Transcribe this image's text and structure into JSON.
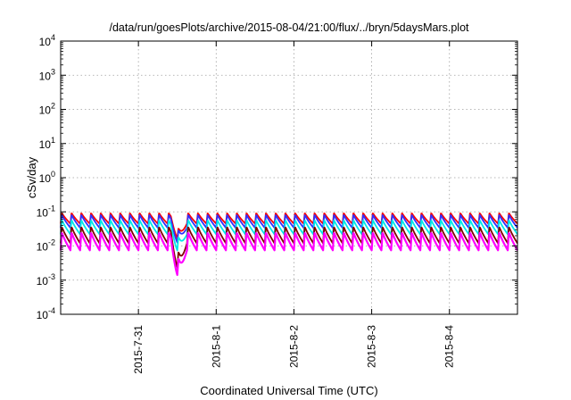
{
  "chart_data": {
    "type": "line",
    "title": "/data/run/goesPlots/archive/2015-08-04/21:00/flux/../bryn/5daysMars.plot",
    "xlabel": "Coordinated Universal Time (UTC)",
    "ylabel": "cSv/day",
    "yscale": "log",
    "ylim": [
      0.0001,
      10000
    ],
    "y_ticks": [
      {
        "value": 0.0001,
        "base": "10",
        "exp": "-4"
      },
      {
        "value": 0.001,
        "base": "10",
        "exp": "-3"
      },
      {
        "value": 0.01,
        "base": "10",
        "exp": "-2"
      },
      {
        "value": 0.1,
        "base": "10",
        "exp": "-1"
      },
      {
        "value": 1,
        "base": "10",
        "exp": "0"
      },
      {
        "value": 10,
        "base": "10",
        "exp": "1"
      },
      {
        "value": 100,
        "base": "10",
        "exp": "2"
      },
      {
        "value": 1000,
        "base": "10",
        "exp": "3"
      },
      {
        "value": 10000,
        "base": "10",
        "exp": "4"
      }
    ],
    "xlim": [
      "2015-07-30 00:00",
      "2015-08-04 21:00"
    ],
    "x_ticks": [
      "2015-7-31",
      "2015-8-1",
      "2015-8-2",
      "2015-8-3",
      "2015-8-4"
    ],
    "grid": true,
    "legend": "none",
    "cycle_hours": 3,
    "event": {
      "start": "2015-07-31 10:00",
      "min": "2015-07-31 12:30",
      "end": "2015-07-31 15:00"
    },
    "series": [
      {
        "color": "#ff0000",
        "peak": 0.095,
        "trough": 0.045,
        "event_min": 0.016
      },
      {
        "color": "#3030ff",
        "peak": 0.085,
        "trough": 0.034,
        "event_min": 0.012
      },
      {
        "color": "#00e8e8",
        "peak": 0.06,
        "trough": 0.022,
        "event_min": 0.007
      },
      {
        "color": "#800000",
        "peak": 0.038,
        "trough": 0.012,
        "event_min": 0.0022
      },
      {
        "color": "#ff00ff",
        "peak": 0.026,
        "trough": 0.0075,
        "event_min": 0.0013
      }
    ]
  }
}
